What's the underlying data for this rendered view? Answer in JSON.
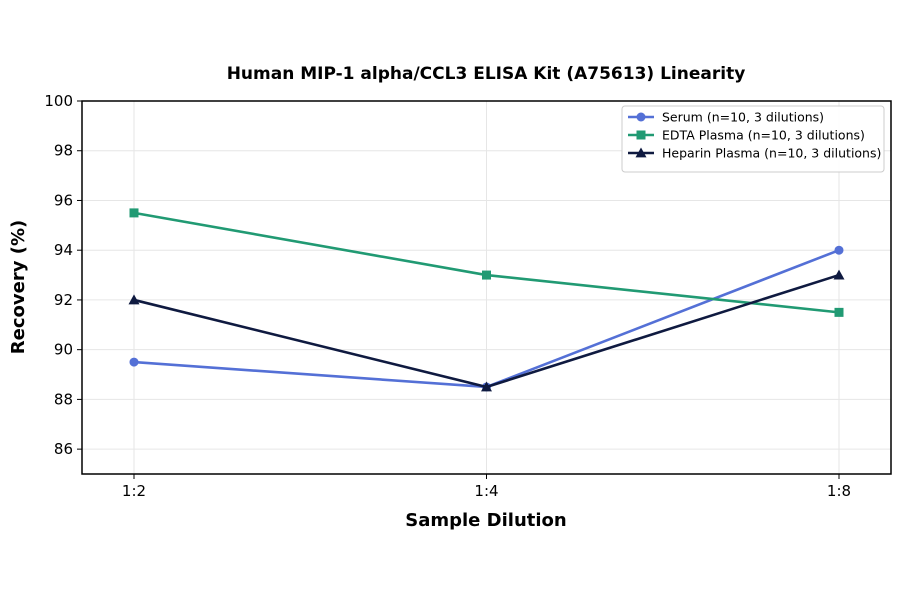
{
  "chart_data": {
    "type": "line",
    "title": "Human MIP-1 alpha/CCL3 ELISA Kit (A75613) Linearity",
    "xlabel": "Sample Dilution",
    "ylabel": "Recovery (%)",
    "categories": [
      "1:2",
      "1:4",
      "1:8"
    ],
    "ylim": [
      85,
      100
    ],
    "yticks": [
      86,
      88,
      90,
      92,
      94,
      96,
      98,
      100
    ],
    "grid": true,
    "legend_position": "top-right",
    "series": [
      {
        "name": "Serum (n=10, 3 dilutions)",
        "values": [
          89.5,
          88.5,
          94.0
        ],
        "color": "#5470d6",
        "marker": "circle"
      },
      {
        "name": "EDTA Plasma (n=10, 3 dilutions)",
        "values": [
          95.5,
          93.0,
          91.5
        ],
        "color": "#219a73",
        "marker": "square"
      },
      {
        "name": "Heparin Plasma (n=10, 3 dilutions)",
        "values": [
          92.0,
          88.5,
          93.0
        ],
        "color": "#0f1a40",
        "marker": "triangle"
      }
    ]
  }
}
